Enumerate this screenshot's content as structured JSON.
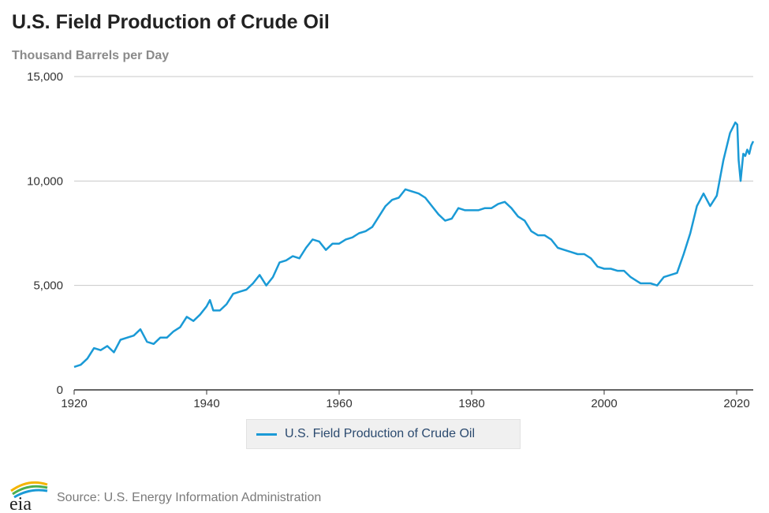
{
  "header": {
    "title": "U.S. Field Production of Crude Oil",
    "subtitle": "Thousand Barrels per Day"
  },
  "legend": {
    "label": "U.S. Field Production of Crude Oil"
  },
  "footer": {
    "logo_text": "eia",
    "source": "Source: U.S. Energy Information Administration"
  },
  "colors": {
    "series": "#1a9ad6",
    "grid": "#c8c8c8",
    "axis": "#333333"
  },
  "chart_data": {
    "type": "line",
    "title": "U.S. Field Production of Crude Oil",
    "ylabel": "Thousand Barrels per Day",
    "xlim": [
      1920,
      2022.5
    ],
    "ylim": [
      0,
      15000
    ],
    "xticks": [
      1920,
      1940,
      1960,
      1980,
      2000,
      2020
    ],
    "xtick_labels": [
      "1920",
      "1940",
      "1960",
      "1980",
      "2000",
      "2020"
    ],
    "yticks": [
      0,
      5000,
      10000,
      15000
    ],
    "ytick_labels": [
      "0",
      "5,000",
      "10,000",
      "15,000"
    ],
    "grid": true,
    "legend_position": "bottom-center",
    "series": [
      {
        "name": "U.S. Field Production of Crude Oil",
        "x": [
          1920,
          1921,
          1922,
          1923,
          1924,
          1925,
          1926,
          1927,
          1928,
          1929,
          1930,
          1931,
          1932,
          1933,
          1934,
          1935,
          1936,
          1937,
          1938,
          1939,
          1940,
          1940.5,
          1941,
          1942,
          1943,
          1944,
          1945,
          1946,
          1947,
          1948,
          1949,
          1950,
          1951,
          1952,
          1953,
          1954,
          1955,
          1956,
          1957,
          1958,
          1959,
          1960,
          1961,
          1962,
          1963,
          1964,
          1965,
          1966,
          1967,
          1968,
          1969,
          1970,
          1971,
          1972,
          1973,
          1974,
          1975,
          1976,
          1977,
          1978,
          1979,
          1980,
          1981,
          1982,
          1983,
          1984,
          1985,
          1986,
          1987,
          1988,
          1989,
          1990,
          1991,
          1992,
          1993,
          1994,
          1995,
          1996,
          1997,
          1998,
          1999,
          2000,
          2001,
          2002,
          2003,
          2004,
          2005,
          2005.5,
          2006,
          2007,
          2008,
          2008.5,
          2009,
          2010,
          2011,
          2012,
          2013,
          2014,
          2015,
          2016,
          2017,
          2018,
          2019,
          2019.8,
          2020.1,
          2020.3,
          2020.6,
          2020.9,
          2021,
          2021.3,
          2021.6,
          2021.9,
          2022.2,
          2022.5
        ],
        "y": [
          1100,
          1200,
          1500,
          2000,
          1900,
          2100,
          1800,
          2400,
          2500,
          2600,
          2900,
          2300,
          2200,
          2500,
          2500,
          2800,
          3000,
          3500,
          3300,
          3600,
          4000,
          4300,
          3800,
          3800,
          4100,
          4600,
          4700,
          4800,
          5100,
          5500,
          5000,
          5400,
          6100,
          6200,
          6400,
          6300,
          6800,
          7200,
          7100,
          6700,
          7000,
          7000,
          7200,
          7300,
          7500,
          7600,
          7800,
          8300,
          8800,
          9100,
          9200,
          9600,
          9500,
          9400,
          9200,
          8800,
          8400,
          8100,
          8200,
          8700,
          8600,
          8600,
          8600,
          8700,
          8700,
          8900,
          9000,
          8700,
          8300,
          8100,
          7600,
          7400,
          7400,
          7200,
          6800,
          6700,
          6600,
          6500,
          6500,
          6300,
          5900,
          5800,
          5800,
          5700,
          5700,
          5400,
          5200,
          5100,
          5100,
          5100,
          5000,
          5200,
          5400,
          5500,
          5600,
          6500,
          7500,
          8800,
          9400,
          8800,
          9300,
          11000,
          12300,
          12800,
          12700,
          11000,
          10000,
          11000,
          11300,
          11200,
          11500,
          11300,
          11700,
          11900
        ]
      }
    ]
  }
}
